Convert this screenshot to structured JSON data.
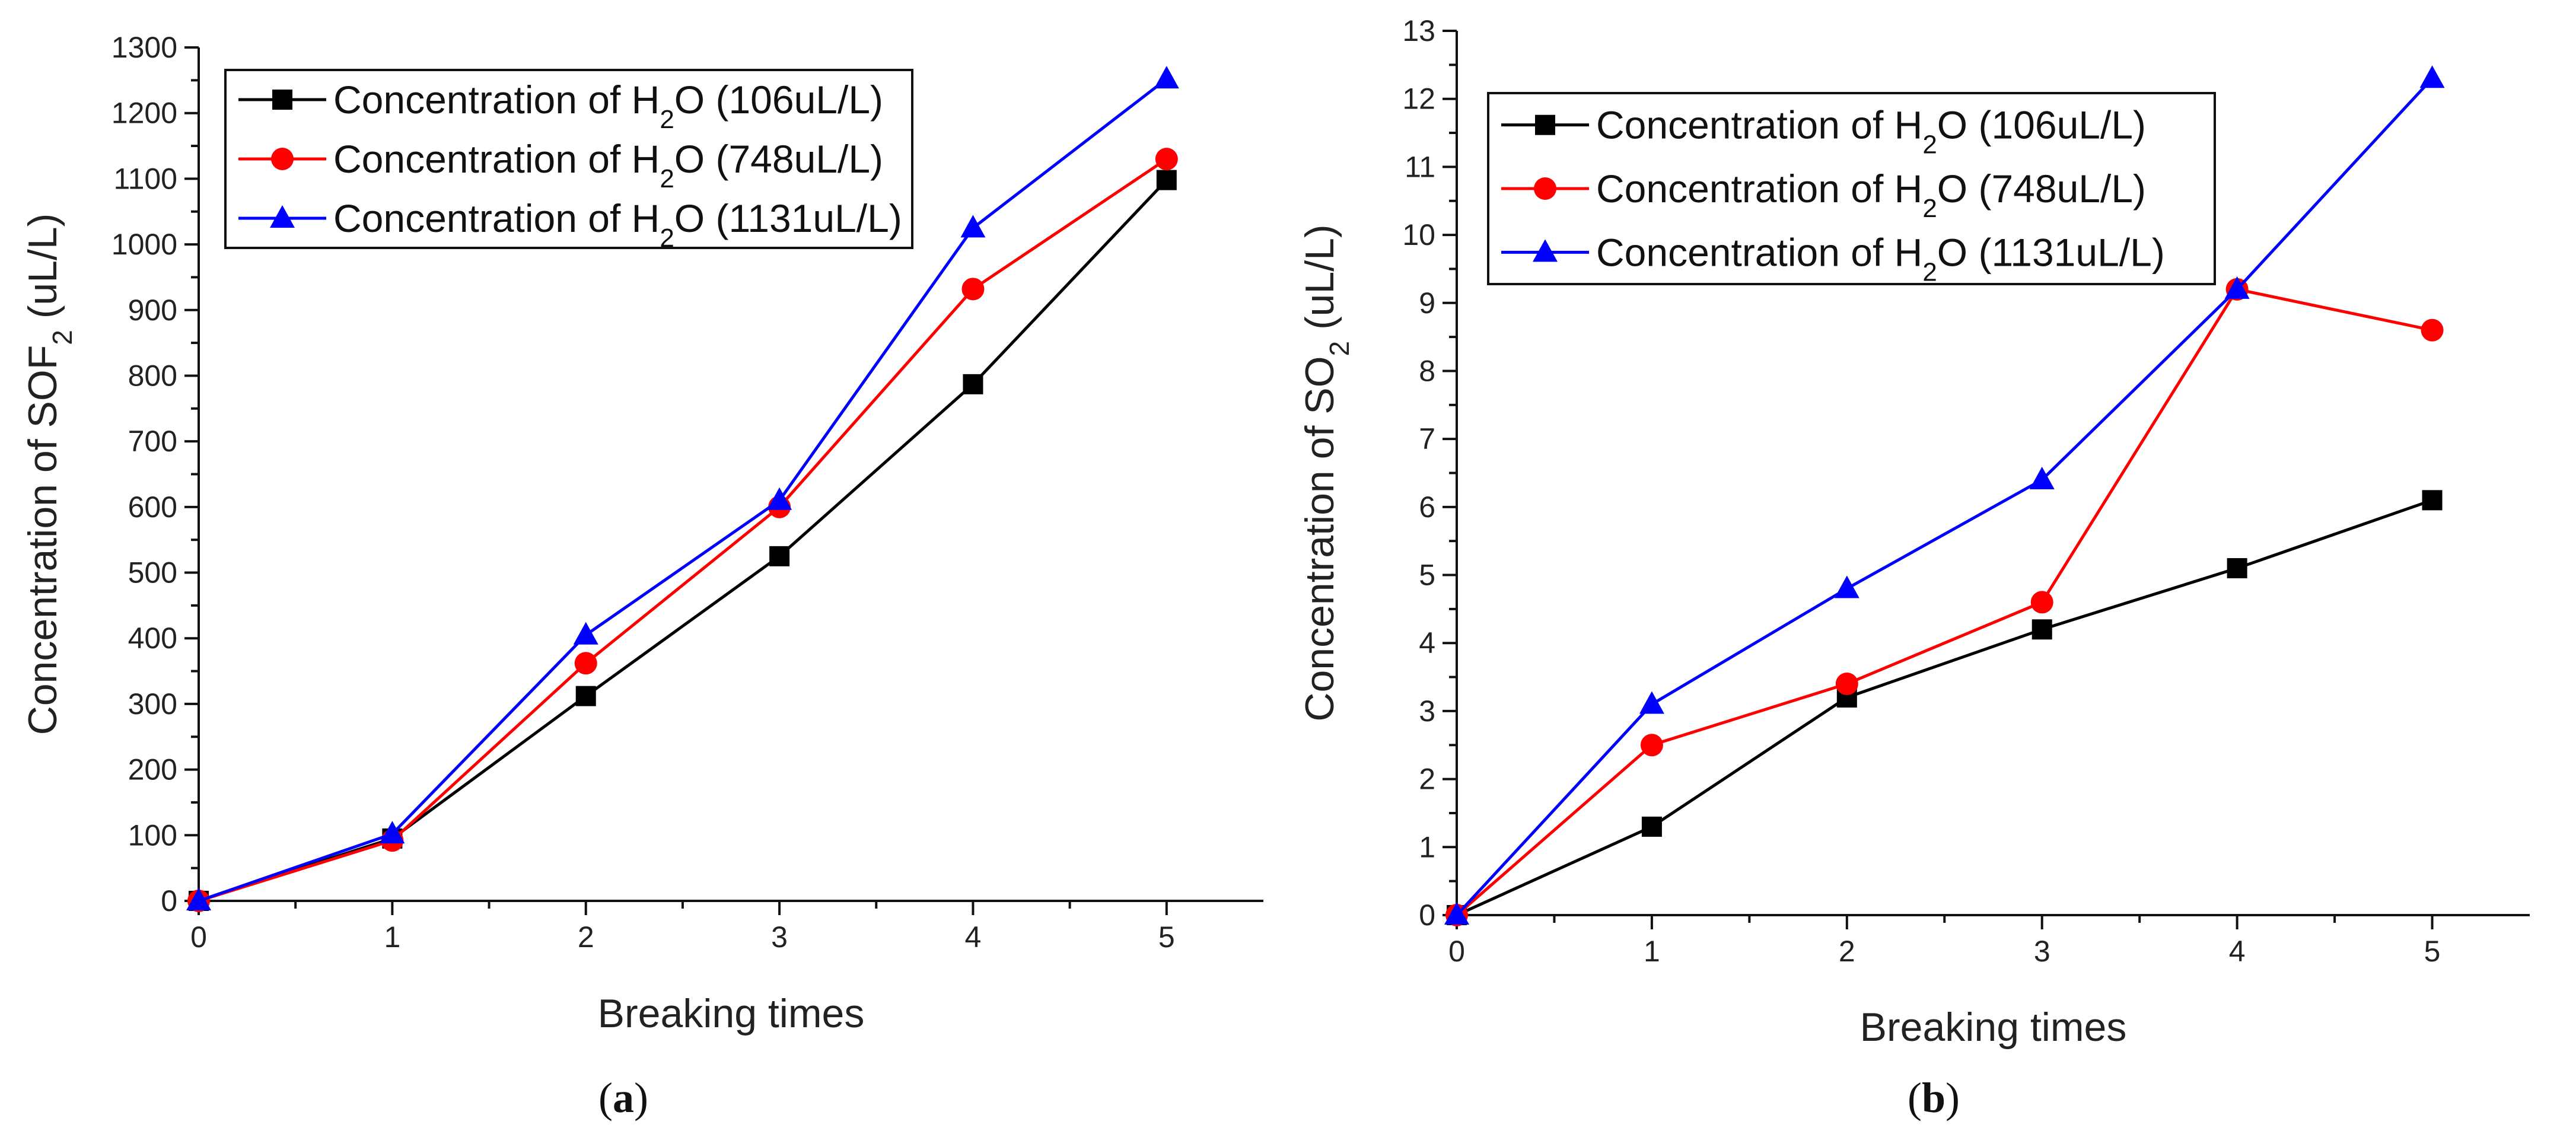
{
  "chart_data": [
    {
      "id": "a",
      "type": "line",
      "caption_pre": "(",
      "caption_letter": "a",
      "caption_post": ")",
      "xlabel": "Breaking times",
      "ylabel_pre": "Concentration of SOF",
      "ylabel_sub": "2",
      "ylabel_post": " (uL/L)",
      "xlim": [
        0,
        5.5
      ],
      "ylim": [
        0,
        1300
      ],
      "xticks": [
        0,
        1,
        2,
        3,
        4,
        5
      ],
      "yticks": [
        0,
        100,
        200,
        300,
        400,
        500,
        600,
        700,
        800,
        900,
        1000,
        1100,
        1200,
        1300
      ],
      "x": [
        0,
        1,
        2,
        3,
        4,
        5
      ],
      "series": [
        {
          "name_pre": "Concentration of H",
          "name_sub": "2",
          "name_post": "O (106uL/L)",
          "color": "#000000",
          "marker": "square",
          "values": [
            0,
            95,
            312,
            525,
            787,
            1098
          ]
        },
        {
          "name_pre": "Concentration of H",
          "name_sub": "2",
          "name_post": "O (748uL/L)",
          "color": "#ff0000",
          "marker": "circle",
          "values": [
            0,
            92,
            362,
            600,
            932,
            1130
          ]
        },
        {
          "name_pre": "Concentration of H",
          "name_sub": "2",
          "name_post": "O (1131uL/L)",
          "color": "#0000ff",
          "marker": "triangle",
          "values": [
            0,
            102,
            405,
            610,
            1025,
            1252
          ]
        }
      ]
    },
    {
      "id": "b",
      "type": "line",
      "caption_pre": "(",
      "caption_letter": "b",
      "caption_post": ")",
      "xlabel": "Breaking times",
      "ylabel_pre": "Concentration of SO",
      "ylabel_sub": "2",
      "ylabel_post": " (uL/L)",
      "xlim": [
        0,
        5.5
      ],
      "ylim": [
        0,
        13
      ],
      "xticks": [
        0,
        1,
        2,
        3,
        4,
        5
      ],
      "yticks": [
        0,
        1,
        2,
        3,
        4,
        5,
        6,
        7,
        8,
        9,
        10,
        11,
        12,
        13
      ],
      "x": [
        0,
        1,
        2,
        3,
        4,
        5
      ],
      "series": [
        {
          "name_pre": "Concentration of H",
          "name_sub": "2",
          "name_post": "O (106uL/L)",
          "color": "#000000",
          "marker": "square",
          "values": [
            0,
            1.3,
            3.2,
            4.2,
            5.1,
            6.1
          ]
        },
        {
          "name_pre": "Concentration of H",
          "name_sub": "2",
          "name_post": "O (748uL/L)",
          "color": "#ff0000",
          "marker": "circle",
          "values": [
            0,
            2.5,
            3.4,
            4.6,
            9.2,
            8.6
          ]
        },
        {
          "name_pre": "Concentration of H",
          "name_sub": "2",
          "name_post": "O (1131uL/L)",
          "color": "#0000ff",
          "marker": "triangle",
          "values": [
            0,
            3.1,
            4.8,
            6.4,
            9.2,
            12.3
          ]
        }
      ]
    }
  ]
}
